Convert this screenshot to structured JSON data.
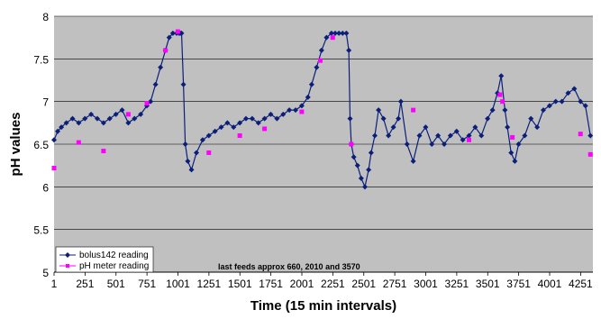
{
  "chart_data": {
    "type": "line",
    "xlabel": "Time (15 min intervals)",
    "ylabel": "pH values",
    "xlim": [
      1,
      4350
    ],
    "ylim": [
      5,
      8
    ],
    "x_ticks": [
      "1",
      "251",
      "501",
      "751",
      "1001",
      "1251",
      "1501",
      "1751",
      "2001",
      "2251",
      "2501",
      "2751",
      "3001",
      "3251",
      "3501",
      "3751",
      "4001",
      "4251"
    ],
    "y_ticks": [
      "5",
      "5.5",
      "6",
      "6.5",
      "7",
      "7.5",
      "8"
    ],
    "grid": "horizontal",
    "legend_position": "bottom-left",
    "annotation": "last feeds approx 660, 2010 and 3570",
    "colors": {
      "plot_background": "#c0c0c0",
      "bolus_series": "#0b1f7a",
      "meter_series": "#ff00ff",
      "gridline": "#000000"
    },
    "series": [
      {
        "name": "bolus142 reading",
        "marker": "diamond",
        "x": [
          1,
          30,
          60,
          100,
          150,
          200,
          250,
          300,
          350,
          400,
          450,
          500,
          550,
          600,
          650,
          700,
          750,
          780,
          820,
          860,
          900,
          930,
          960,
          990,
          1010,
          1020,
          1030,
          1045,
          1060,
          1080,
          1110,
          1150,
          1200,
          1250,
          1300,
          1350,
          1400,
          1450,
          1500,
          1550,
          1600,
          1650,
          1700,
          1750,
          1800,
          1850,
          1900,
          1950,
          2000,
          2050,
          2080,
          2120,
          2160,
          2200,
          2240,
          2270,
          2300,
          2330,
          2360,
          2380,
          2390,
          2400,
          2420,
          2450,
          2480,
          2510,
          2540,
          2560,
          2590,
          2620,
          2660,
          2700,
          2740,
          2780,
          2800,
          2850,
          2900,
          2950,
          3000,
          3050,
          3100,
          3150,
          3200,
          3250,
          3300,
          3350,
          3400,
          3450,
          3500,
          3540,
          3580,
          3610,
          3640,
          3660,
          3690,
          3720,
          3750,
          3800,
          3850,
          3900,
          3950,
          4000,
          4050,
          4100,
          4150,
          4200,
          4250,
          4290,
          4330
        ],
        "y": [
          6.55,
          6.65,
          6.7,
          6.75,
          6.8,
          6.75,
          6.8,
          6.85,
          6.8,
          6.75,
          6.8,
          6.85,
          6.9,
          6.75,
          6.8,
          6.85,
          6.95,
          7.0,
          7.2,
          7.4,
          7.6,
          7.75,
          7.8,
          7.8,
          7.8,
          7.8,
          7.8,
          7.2,
          6.5,
          6.3,
          6.2,
          6.4,
          6.55,
          6.6,
          6.65,
          6.7,
          6.75,
          6.7,
          6.75,
          6.8,
          6.8,
          6.75,
          6.8,
          6.85,
          6.8,
          6.85,
          6.9,
          6.9,
          6.95,
          7.05,
          7.2,
          7.4,
          7.6,
          7.75,
          7.8,
          7.8,
          7.8,
          7.8,
          7.8,
          7.6,
          6.8,
          6.5,
          6.35,
          6.25,
          6.1,
          6.0,
          6.2,
          6.4,
          6.6,
          6.9,
          6.8,
          6.6,
          6.7,
          6.8,
          7.0,
          6.5,
          6.3,
          6.6,
          6.7,
          6.5,
          6.6,
          6.5,
          6.6,
          6.65,
          6.55,
          6.6,
          6.7,
          6.6,
          6.8,
          6.9,
          7.1,
          7.3,
          6.9,
          6.7,
          6.4,
          6.3,
          6.5,
          6.6,
          6.8,
          6.7,
          6.9,
          6.95,
          7.0,
          7.0,
          7.1,
          7.15,
          7.0,
          6.95,
          6.6
        ]
      },
      {
        "name": "pH meter reading",
        "marker": "square",
        "x": [
          1,
          200,
          400,
          600,
          750,
          900,
          1000,
          1250,
          1500,
          1700,
          2000,
          2150,
          2250,
          2400,
          2900,
          3350,
          3600,
          3620,
          3700,
          4250,
          4330
        ],
        "y": [
          6.22,
          6.52,
          6.42,
          6.85,
          6.98,
          7.6,
          7.82,
          6.4,
          6.6,
          6.68,
          6.88,
          7.48,
          7.75,
          6.5,
          6.9,
          6.55,
          7.08,
          7.0,
          6.58,
          6.62,
          6.38
        ]
      }
    ]
  }
}
